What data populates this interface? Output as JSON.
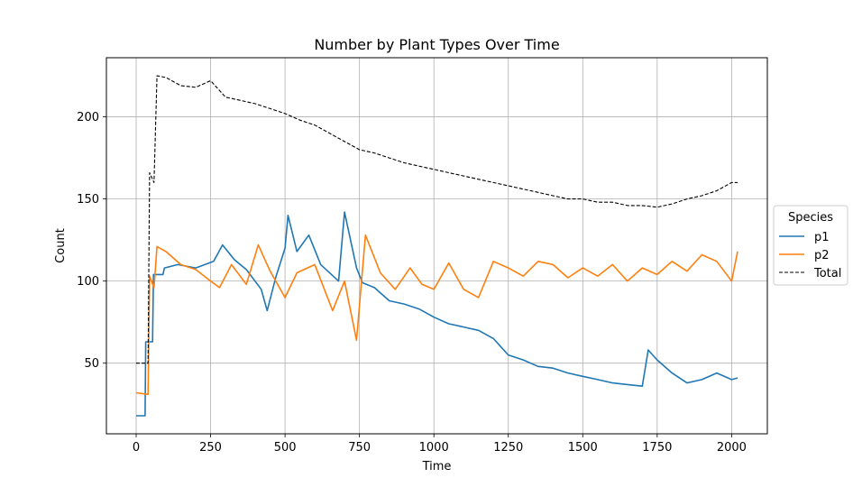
{
  "chart_data": {
    "type": "line",
    "title": "Number by Plant Types Over Time",
    "xlabel": "Time",
    "ylabel": "Count",
    "xlim": [
      -100,
      2120
    ],
    "ylim": [
      7,
      236
    ],
    "xticks": [
      0,
      250,
      500,
      750,
      1000,
      1250,
      1500,
      1750,
      2000
    ],
    "yticks": [
      50,
      100,
      150,
      200
    ],
    "grid": true,
    "legend": {
      "title": "Species",
      "placement": "outside-right",
      "entries": [
        "p1",
        "p2",
        "Total"
      ]
    },
    "series": [
      {
        "name": "p1",
        "color": "#1f77b4",
        "style": "solid",
        "points": [
          [
            0,
            18
          ],
          [
            30,
            18
          ],
          [
            32,
            63
          ],
          [
            55,
            63
          ],
          [
            58,
            104
          ],
          [
            90,
            104
          ],
          [
            95,
            108
          ],
          [
            140,
            110
          ],
          [
            200,
            108
          ],
          [
            260,
            112
          ],
          [
            290,
            122
          ],
          [
            330,
            113
          ],
          [
            370,
            107
          ],
          [
            420,
            95
          ],
          [
            440,
            82
          ],
          [
            470,
            103
          ],
          [
            500,
            120
          ],
          [
            510,
            140
          ],
          [
            540,
            118
          ],
          [
            580,
            128
          ],
          [
            620,
            110
          ],
          [
            680,
            100
          ],
          [
            700,
            142
          ],
          [
            740,
            108
          ],
          [
            760,
            99
          ],
          [
            800,
            96
          ],
          [
            850,
            88
          ],
          [
            900,
            86
          ],
          [
            950,
            83
          ],
          [
            1000,
            78
          ],
          [
            1050,
            74
          ],
          [
            1100,
            72
          ],
          [
            1150,
            70
          ],
          [
            1200,
            65
          ],
          [
            1250,
            55
          ],
          [
            1300,
            52
          ],
          [
            1350,
            48
          ],
          [
            1400,
            47
          ],
          [
            1450,
            44
          ],
          [
            1500,
            42
          ],
          [
            1550,
            40
          ],
          [
            1600,
            38
          ],
          [
            1650,
            37
          ],
          [
            1700,
            36
          ],
          [
            1720,
            58
          ],
          [
            1750,
            52
          ],
          [
            1800,
            44
          ],
          [
            1850,
            38
          ],
          [
            1900,
            40
          ],
          [
            1950,
            44
          ],
          [
            2000,
            40
          ],
          [
            2020,
            41
          ]
        ]
      },
      {
        "name": "p2",
        "color": "#ff7f0e",
        "style": "solid",
        "points": [
          [
            0,
            32
          ],
          [
            40,
            31
          ],
          [
            45,
            103
          ],
          [
            60,
            96
          ],
          [
            70,
            121
          ],
          [
            100,
            118
          ],
          [
            150,
            110
          ],
          [
            200,
            107
          ],
          [
            250,
            100
          ],
          [
            280,
            96
          ],
          [
            320,
            110
          ],
          [
            370,
            98
          ],
          [
            410,
            122
          ],
          [
            450,
            106
          ],
          [
            500,
            90
          ],
          [
            540,
            105
          ],
          [
            600,
            110
          ],
          [
            660,
            82
          ],
          [
            700,
            100
          ],
          [
            740,
            64
          ],
          [
            770,
            128
          ],
          [
            820,
            105
          ],
          [
            870,
            95
          ],
          [
            920,
            108
          ],
          [
            960,
            98
          ],
          [
            1000,
            95
          ],
          [
            1050,
            111
          ],
          [
            1100,
            95
          ],
          [
            1150,
            90
          ],
          [
            1200,
            112
          ],
          [
            1250,
            108
          ],
          [
            1300,
            103
          ],
          [
            1350,
            112
          ],
          [
            1400,
            110
          ],
          [
            1450,
            102
          ],
          [
            1500,
            108
          ],
          [
            1550,
            103
          ],
          [
            1600,
            110
          ],
          [
            1650,
            100
          ],
          [
            1700,
            108
          ],
          [
            1750,
            104
          ],
          [
            1800,
            112
          ],
          [
            1850,
            106
          ],
          [
            1900,
            116
          ],
          [
            1950,
            112
          ],
          [
            2000,
            100
          ],
          [
            2020,
            118
          ]
        ]
      },
      {
        "name": "Total",
        "color": "#000000",
        "style": "dashed",
        "points": [
          [
            0,
            50
          ],
          [
            40,
            50
          ],
          [
            45,
            166
          ],
          [
            60,
            160
          ],
          [
            70,
            225
          ],
          [
            100,
            224
          ],
          [
            150,
            219
          ],
          [
            200,
            218
          ],
          [
            250,
            222
          ],
          [
            300,
            212
          ],
          [
            350,
            210
          ],
          [
            400,
            208
          ],
          [
            450,
            205
          ],
          [
            500,
            202
          ],
          [
            550,
            198
          ],
          [
            600,
            195
          ],
          [
            650,
            190
          ],
          [
            700,
            185
          ],
          [
            750,
            180
          ],
          [
            800,
            178
          ],
          [
            850,
            175
          ],
          [
            900,
            172
          ],
          [
            950,
            170
          ],
          [
            1000,
            168
          ],
          [
            1050,
            166
          ],
          [
            1100,
            164
          ],
          [
            1150,
            162
          ],
          [
            1200,
            160
          ],
          [
            1250,
            158
          ],
          [
            1300,
            156
          ],
          [
            1350,
            154
          ],
          [
            1400,
            152
          ],
          [
            1450,
            150
          ],
          [
            1500,
            150
          ],
          [
            1550,
            148
          ],
          [
            1600,
            148
          ],
          [
            1650,
            146
          ],
          [
            1700,
            146
          ],
          [
            1750,
            145
          ],
          [
            1800,
            147
          ],
          [
            1850,
            150
          ],
          [
            1900,
            152
          ],
          [
            1950,
            155
          ],
          [
            2000,
            160
          ],
          [
            2020,
            160
          ]
        ]
      }
    ]
  }
}
